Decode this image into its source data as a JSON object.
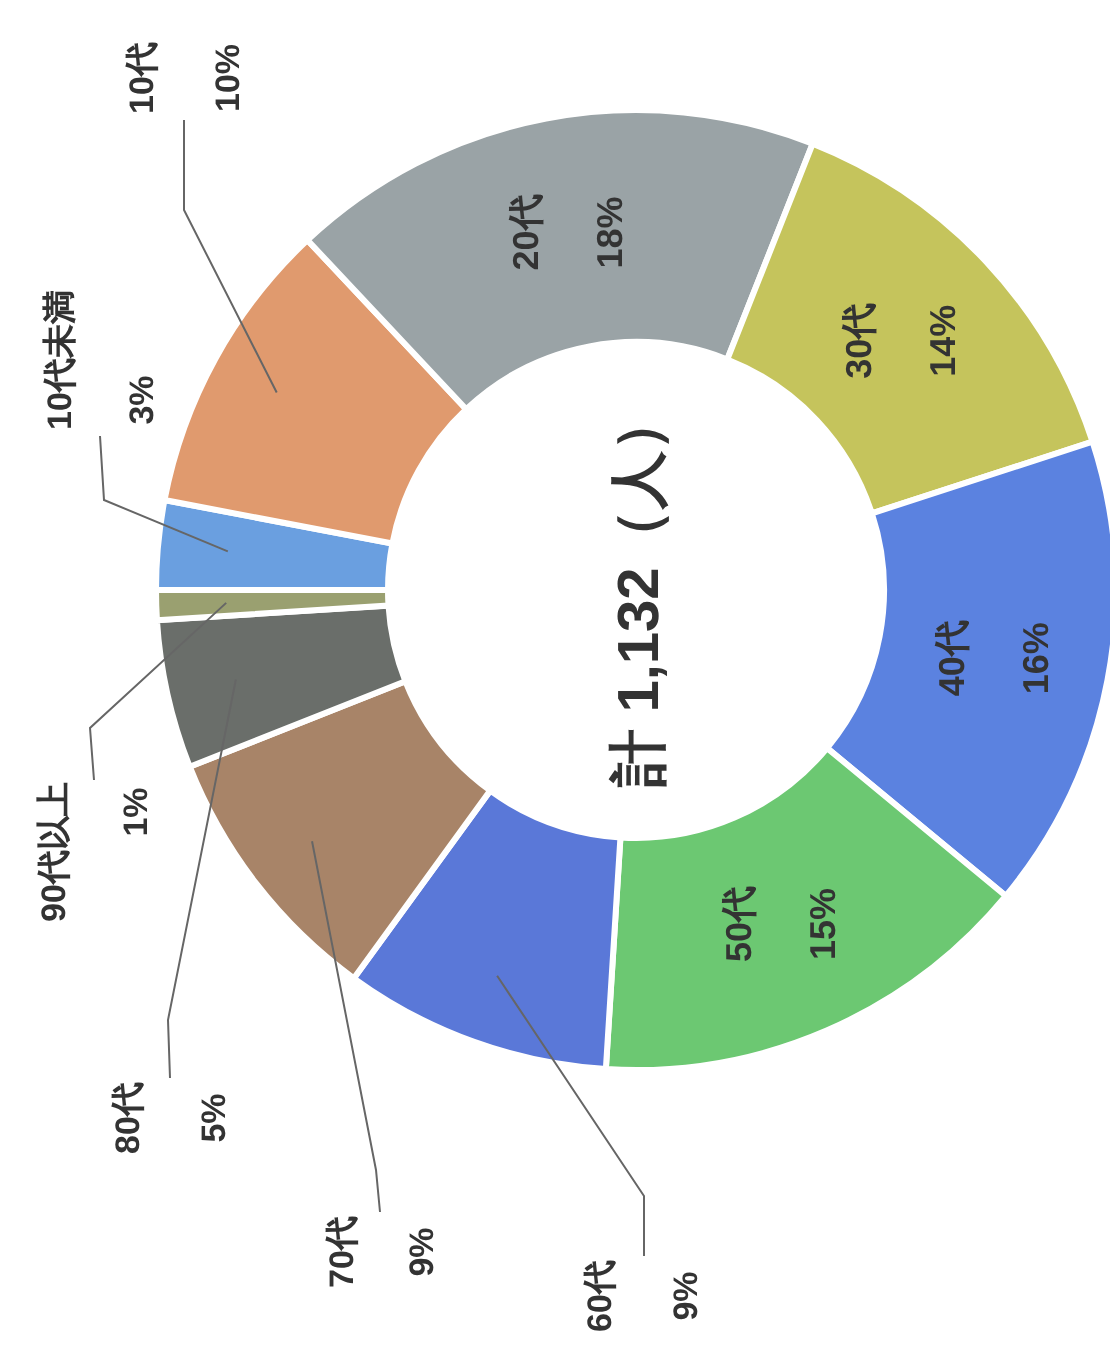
{
  "chart_data": {
    "type": "donut",
    "title": "計 1,132（人）",
    "categories": [
      "10代未満",
      "10代",
      "20代",
      "30代",
      "40代",
      "50代",
      "60代",
      "70代",
      "80代",
      "90代以上"
    ],
    "values": [
      3,
      10,
      18,
      14,
      16,
      15,
      9,
      9,
      5,
      1
    ],
    "value_labels": [
      "3%",
      "10%",
      "18%",
      "14%",
      "16%",
      "15%",
      "9%",
      "9%",
      "5%",
      "1%"
    ],
    "colors": [
      "#6a9fe0",
      "#e09a6e",
      "#9aa3a6",
      "#c5c45c",
      "#5b82e0",
      "#6cc872",
      "#5a78d8",
      "#a88468",
      "#6a6e6a",
      "#9aa070"
    ]
  }
}
